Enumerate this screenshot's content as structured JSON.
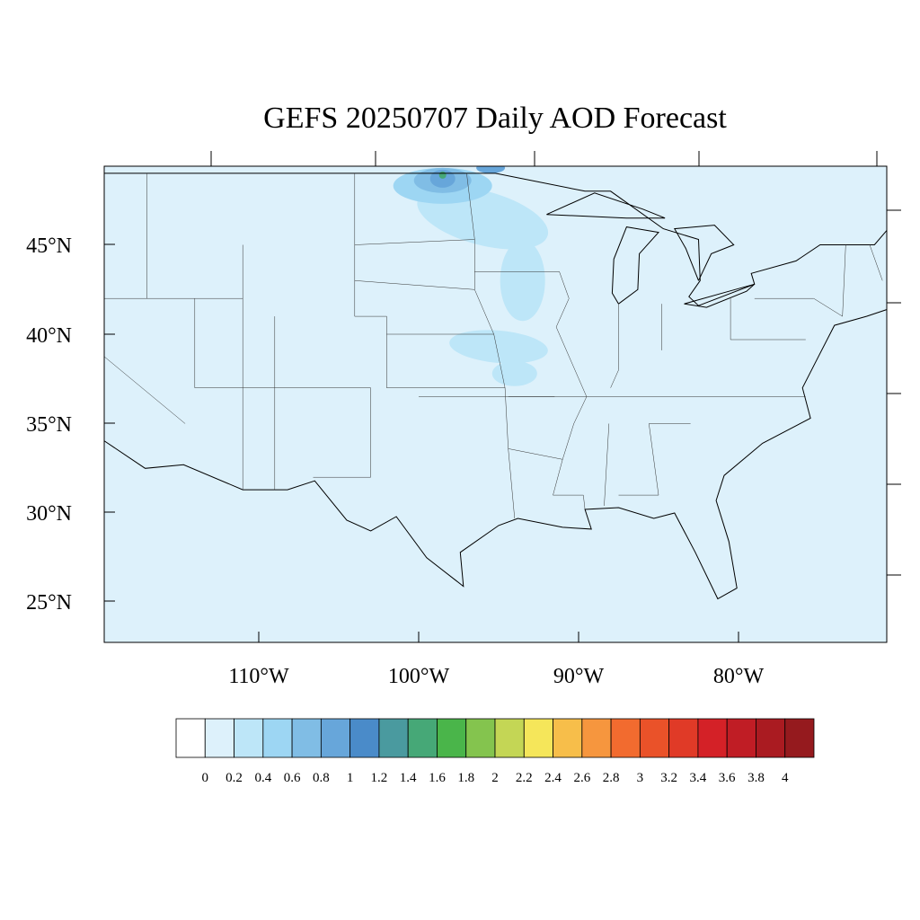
{
  "title": "GEFS 20250707 Daily AOD Forecast",
  "latitude_labels": [
    "45°N",
    "40°N",
    "35°N",
    "30°N",
    "25°N"
  ],
  "longitude_labels": [
    "110°W",
    "100°W",
    "90°W",
    "80°W"
  ],
  "colorbar": {
    "labels": [
      0,
      0.2,
      0.4,
      0.6,
      0.8,
      1,
      1.2,
      1.4,
      1.6,
      1.8,
      2,
      2.2,
      2.4,
      2.6,
      2.8,
      3,
      3.2,
      3.4,
      3.6,
      3.8,
      4
    ],
    "colors": [
      "#ffffff",
      "#ddf1fb",
      "#bde6f8",
      "#9dd6f3",
      "#80bde5",
      "#67a6da",
      "#4a8bc9",
      "#4a9a9f",
      "#46a877",
      "#4ab54a",
      "#84c44e",
      "#c4d655",
      "#f5e65a",
      "#f7be4a",
      "#f6963e",
      "#f26b2f",
      "#ea5229",
      "#e03a27",
      "#d42127",
      "#c01d25",
      "#aa1b21",
      "#951a1e"
    ]
  }
}
